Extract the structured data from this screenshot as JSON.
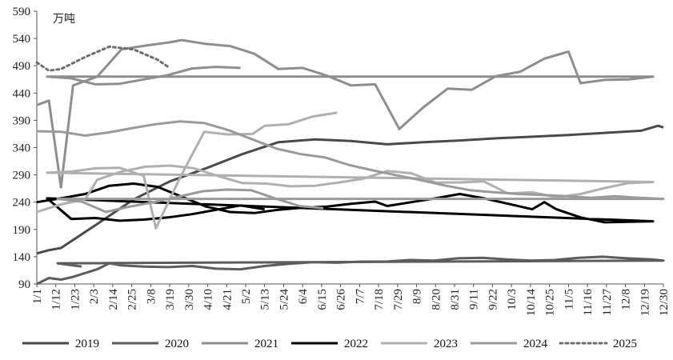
{
  "chart_data": {
    "type": "line",
    "title": "",
    "xlabel": "",
    "ylabel": "",
    "unit_label": "万吨",
    "ylim": [
      90,
      590
    ],
    "yticks": [
      90,
      140,
      190,
      240,
      290,
      340,
      390,
      440,
      490,
      540,
      590
    ],
    "x_tick_labels": [
      "1/1",
      "1/12",
      "1/23",
      "2/3",
      "2/14",
      "2/25",
      "3/8",
      "3/19",
      "3/30",
      "4/10",
      "4/21",
      "5/2",
      "5/13",
      "5/24",
      "6/4",
      "6/15",
      "6/26",
      "7/7",
      "7/18",
      "7/29",
      "8/9",
      "8/20",
      "8/31",
      "9/11",
      "9/22",
      "10/3",
      "10/14",
      "10/25",
      "11/5",
      "11/16",
      "11/27",
      "12/8",
      "12/19",
      "12/30"
    ],
    "x_domain": [
      "1/1",
      "12/30"
    ],
    "legend_position": "bottom",
    "grid": false,
    "series": [
      {
        "name": "2019",
        "color": "#4a4a4a",
        "width": 3,
        "dash": "",
        "points": [
          [
            "1/1",
            146
          ],
          [
            "1/8",
            152
          ],
          [
            "1/15",
            156
          ],
          [
            "2/5",
            200
          ],
          [
            "2/26",
            245
          ],
          [
            "3/19",
            278
          ],
          [
            "4/9",
            302
          ],
          [
            "4/30",
            328
          ],
          [
            "5/21",
            350
          ],
          [
            "6/11",
            355
          ],
          [
            "7/2",
            352
          ],
          [
            "7/23",
            346
          ],
          [
            "8/13",
            350
          ],
          [
            "9/3",
            353
          ],
          [
            "9/24",
            357
          ],
          [
            "10/15",
            360
          ],
          [
            "11/5",
            363
          ],
          [
            "11/26",
            367
          ],
          [
            "12/17",
            371
          ],
          [
            "12/27",
            380
          ],
          [
            "12/30",
            377
          ]
        ]
      },
      {
        "name": "2020",
        "color": "#5c5c5c",
        "width": 3,
        "dash": "",
        "points": [
          [
            "1/1",
            90
          ],
          [
            "1/8",
            101
          ],
          [
            "1/15",
            98
          ],
          [
            "1/22",
            103
          ],
          [
            "2/5",
            117
          ],
          [
            "2/12",
            128
          ],
          [
            "2/19",
            124
          ],
          [
            "3/4",
            122
          ],
          [
            "3/18",
            121
          ],
          [
            "4/1",
            123
          ],
          [
            "4/15",
            118
          ],
          [
            "4/29",
            117
          ],
          [
            "5/13",
            123
          ],
          [
            "5/27",
            127
          ],
          [
            "6/10",
            130
          ],
          [
            "6/24",
            129
          ],
          [
            "7/8",
            131
          ],
          [
            "7/22",
            131
          ],
          [
            "8/5",
            134
          ],
          [
            "8/19",
            133
          ],
          [
            "9/2",
            137
          ],
          [
            "9/16",
            138
          ],
          [
            "9/30",
            135
          ],
          [
            "10/14",
            133
          ],
          [
            "10/28",
            134
          ],
          [
            "11/11",
            138
          ],
          [
            "11/25",
            140
          ],
          [
            "12/9",
            137
          ],
          [
            "12/23",
            135
          ],
          [
            "12/30",
            133
          ],
          [
            "1/13",
            128
          ],
          [
            "1/27",
            122
          ]
        ]
      },
      {
        "name": "2021",
        "color": "#8e8e8e",
        "width": 3,
        "dash": "",
        "points": [
          [
            "1/1",
            418
          ],
          [
            "1/8",
            426
          ],
          [
            "1/15",
            267
          ],
          [
            "1/22",
            454
          ],
          [
            "2/5",
            470
          ],
          [
            "2/19",
            520
          ],
          [
            "3/5",
            527
          ],
          [
            "3/19",
            533
          ],
          [
            "3/26",
            537
          ],
          [
            "4/9",
            530
          ],
          [
            "4/23",
            526
          ],
          [
            "5/7",
            512
          ],
          [
            "5/21",
            484
          ],
          [
            "6/4",
            486
          ],
          [
            "6/18",
            472
          ],
          [
            "7/2",
            454
          ],
          [
            "7/16",
            456
          ],
          [
            "7/30",
            374
          ],
          [
            "8/13",
            414
          ],
          [
            "8/27",
            448
          ],
          [
            "9/10",
            446
          ],
          [
            "9/24",
            471
          ],
          [
            "10/8",
            479
          ],
          [
            "10/22",
            503
          ],
          [
            "11/5",
            516
          ],
          [
            "11/12",
            458
          ],
          [
            "11/26",
            464
          ],
          [
            "12/10",
            465
          ],
          [
            "12/24",
            470
          ],
          [
            "1/7",
            470
          ],
          [
            "1/21",
            467
          ],
          [
            "2/4",
            456
          ],
          [
            "2/18",
            457
          ],
          [
            "3/4",
            465
          ],
          [
            "3/18",
            473
          ],
          [
            "4/1",
            485
          ],
          [
            "4/15",
            488
          ],
          [
            "4/29",
            486
          ]
        ]
      },
      {
        "name": "2022",
        "color": "#000000",
        "width": 3,
        "dash": "",
        "points": [
          [
            "1/1",
            240
          ],
          [
            "1/15",
            247
          ],
          [
            "1/29",
            255
          ],
          [
            "2/12",
            270
          ],
          [
            "2/26",
            274
          ],
          [
            "3/12",
            268
          ],
          [
            "3/26",
            250
          ],
          [
            "4/9",
            232
          ],
          [
            "4/23",
            222
          ],
          [
            "5/7",
            220
          ],
          [
            "5/21",
            226
          ],
          [
            "6/4",
            230
          ],
          [
            "6/18",
            232
          ],
          [
            "7/2",
            237
          ],
          [
            "7/16",
            241
          ],
          [
            "7/23",
            233
          ],
          [
            "8/6",
            240
          ],
          [
            "8/20",
            247
          ],
          [
            "9/3",
            255
          ],
          [
            "9/17",
            247
          ],
          [
            "10/1",
            237
          ],
          [
            "10/15",
            227
          ],
          [
            "10/22",
            240
          ],
          [
            "10/29",
            227
          ],
          [
            "11/12",
            212
          ],
          [
            "11/26",
            203
          ],
          [
            "12/10",
            204
          ],
          [
            "12/24",
            205
          ],
          [
            "1/7",
            247
          ],
          [
            "1/21",
            209
          ],
          [
            "2/4",
            211
          ],
          [
            "2/18",
            206
          ],
          [
            "3/4",
            208
          ],
          [
            "3/18",
            212
          ],
          [
            "4/1",
            218
          ],
          [
            "4/15",
            226
          ],
          [
            "4/29",
            234
          ],
          [
            "5/13",
            227
          ]
        ]
      },
      {
        "name": "2023",
        "color": "#b0b0b0",
        "width": 3,
        "dash": "",
        "points": [
          [
            "1/1",
            222
          ],
          [
            "1/15",
            236
          ],
          [
            "1/29",
            245
          ],
          [
            "2/5",
            281
          ],
          [
            "2/19",
            296
          ],
          [
            "3/5",
            305
          ],
          [
            "3/19",
            307
          ],
          [
            "4/2",
            302
          ],
          [
            "4/16",
            288
          ],
          [
            "4/30",
            275
          ],
          [
            "5/14",
            274
          ],
          [
            "5/28",
            269
          ],
          [
            "6/11",
            270
          ],
          [
            "6/25",
            276
          ],
          [
            "7/9",
            283
          ],
          [
            "7/23",
            297
          ],
          [
            "8/6",
            293
          ],
          [
            "8/20",
            276
          ],
          [
            "9/3",
            276
          ],
          [
            "9/17",
            278
          ],
          [
            "10/1",
            256
          ],
          [
            "10/15",
            258
          ],
          [
            "10/29",
            249
          ],
          [
            "11/12",
            255
          ],
          [
            "11/26",
            266
          ],
          [
            "12/10",
            275
          ],
          [
            "12/24",
            277
          ],
          [
            "1/7",
            294
          ],
          [
            "1/21",
            296
          ],
          [
            "2/4",
            302
          ],
          [
            "2/18",
            303
          ],
          [
            "3/4",
            288
          ],
          [
            "3/11",
            192
          ],
          [
            "3/25",
            285
          ],
          [
            "4/8",
            369
          ],
          [
            "4/22",
            364
          ],
          [
            "5/6",
            365
          ],
          [
            "5/13",
            380
          ],
          [
            "5/27",
            383
          ],
          [
            "6/10",
            397
          ],
          [
            "6/24",
            404
          ]
        ]
      },
      {
        "name": "2024",
        "color": "#9a9a9a",
        "width": 3,
        "dash": "",
        "points": [
          [
            "1/1",
            370
          ],
          [
            "1/15",
            369
          ],
          [
            "1/29",
            362
          ],
          [
            "2/12",
            368
          ],
          [
            "2/26",
            376
          ],
          [
            "3/11",
            383
          ],
          [
            "3/25",
            388
          ],
          [
            "4/8",
            385
          ],
          [
            "4/22",
            372
          ],
          [
            "5/6",
            355
          ],
          [
            "5/20",
            338
          ],
          [
            "6/3",
            328
          ],
          [
            "6/17",
            322
          ],
          [
            "7/1",
            308
          ],
          [
            "7/15",
            298
          ],
          [
            "7/29",
            289
          ],
          [
            "8/12",
            280
          ],
          [
            "8/26",
            270
          ],
          [
            "9/9",
            262
          ],
          [
            "9/23",
            258
          ],
          [
            "10/7",
            255
          ],
          [
            "10/21",
            253
          ],
          [
            "11/4",
            251
          ],
          [
            "11/18",
            248
          ],
          [
            "12/2",
            251
          ],
          [
            "12/16",
            248
          ],
          [
            "12/30",
            246
          ],
          [
            "1/13",
            246
          ],
          [
            "1/27",
            241
          ],
          [
            "2/10",
            222
          ],
          [
            "2/24",
            232
          ],
          [
            "3/10",
            240
          ],
          [
            "3/24",
            250
          ],
          [
            "4/7",
            260
          ],
          [
            "4/21",
            263
          ],
          [
            "5/5",
            262
          ],
          [
            "5/19",
            247
          ],
          [
            "6/2",
            233
          ],
          [
            "6/16",
            229
          ]
        ]
      },
      {
        "name": "2025",
        "color": "#6e6e6e",
        "width": 3,
        "dash": "3 4",
        "points": [
          [
            "1/1",
            496
          ],
          [
            "1/8",
            481
          ],
          [
            "1/15",
            484
          ],
          [
            "1/29",
            506
          ],
          [
            "2/12",
            525
          ],
          [
            "2/26",
            520
          ],
          [
            "3/12",
            501
          ],
          [
            "3/19",
            486
          ]
        ]
      }
    ]
  }
}
